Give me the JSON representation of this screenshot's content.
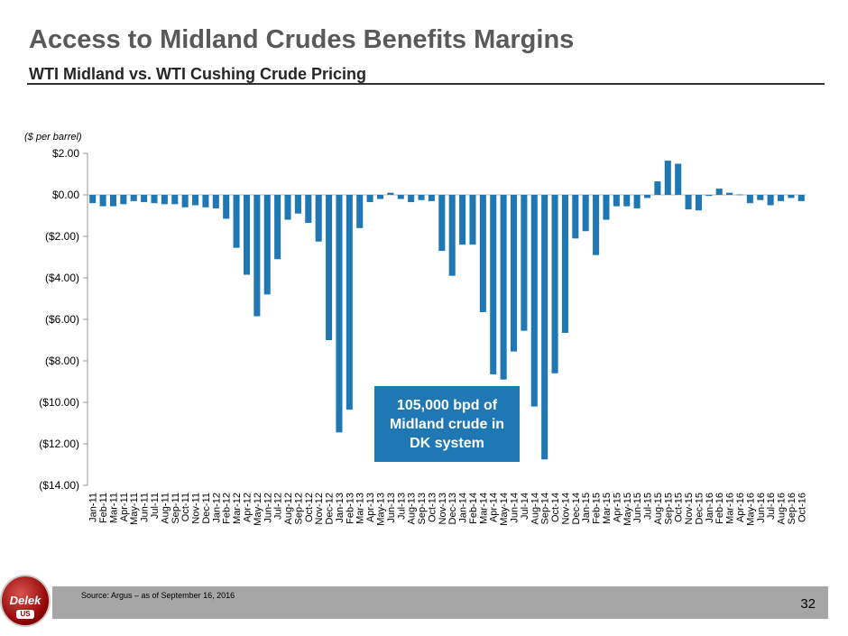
{
  "header": {
    "title": "Access to Midland Crudes Benefits Margins",
    "subtitle": "WTI Midland vs. WTI Cushing Crude Pricing"
  },
  "callout": {
    "line1": "105,000 bpd of",
    "line2": "Midland crude in",
    "line3": "DK system"
  },
  "footer": {
    "source": "Source:  Argus – as of September 16, 2016",
    "page_number": "32"
  },
  "logo": {
    "text": "Delek",
    "sub": "US"
  },
  "colors": {
    "bar": "#1f77b4",
    "callout_bg": "#1f77b4",
    "title": "#595959"
  },
  "chart_data": {
    "type": "bar",
    "title": "WTI Midland vs. WTI Cushing Crude Pricing",
    "ylabel": "($ per barrel)",
    "xlabel": "",
    "ylim": [
      -14,
      2
    ],
    "yticks": [
      2,
      0,
      -2,
      -4,
      -6,
      -8,
      -10,
      -12,
      -14
    ],
    "ytick_labels": [
      "$2.00",
      "$0.00",
      "($2.00)",
      "($4.00)",
      "($6.00)",
      "($8.00)",
      "($10.00)",
      "($12.00)",
      "($14.00)"
    ],
    "categories": [
      "Jan-11",
      "Feb-11",
      "Mar-11",
      "Apr-11",
      "May-11",
      "Jun-11",
      "Jul-11",
      "Aug-11",
      "Sep-11",
      "Oct-11",
      "Nov-11",
      "Dec-11",
      "Jan-12",
      "Feb-12",
      "Mar-12",
      "Apr-12",
      "May-12",
      "Jun-12",
      "Jul-12",
      "Aug-12",
      "Sep-12",
      "Oct-12",
      "Nov-12",
      "Dec-12",
      "Jan-13",
      "Feb-13",
      "Mar-13",
      "Apr-13",
      "May-13",
      "Jun-13",
      "Jul-13",
      "Aug-13",
      "Sep-13",
      "Oct-13",
      "Nov-13",
      "Dec-13",
      "Jan-14",
      "Feb-14",
      "Mar-14",
      "Apr-14",
      "May-14",
      "Jun-14",
      "Jul-14",
      "Aug-14",
      "Sep-14",
      "Oct-14",
      "Nov-14",
      "Dec-14",
      "Jan-15",
      "Feb-15",
      "Mar-15",
      "Apr-15",
      "May-15",
      "Jun-15",
      "Jul-15",
      "Aug-15",
      "Sep-15",
      "Oct-15",
      "Nov-15",
      "Dec-15",
      "Jan-16",
      "Feb-16",
      "Mar-16",
      "Apr-16",
      "May-16",
      "Jun-16",
      "Jul-16",
      "Aug-16",
      "Sep-16",
      "Oct-16"
    ],
    "values": [
      -0.4,
      -0.55,
      -0.55,
      -0.45,
      -0.3,
      -0.35,
      -0.4,
      -0.45,
      -0.45,
      -0.6,
      -0.5,
      -0.6,
      -0.65,
      -1.15,
      -2.55,
      -3.85,
      -5.85,
      -4.8,
      -3.1,
      -1.2,
      -0.9,
      -1.35,
      -2.25,
      -7.0,
      -11.45,
      -10.35,
      -1.6,
      -0.35,
      -0.2,
      0.1,
      -0.2,
      -0.35,
      -0.25,
      -0.3,
      -2.7,
      -3.9,
      -2.4,
      -2.4,
      -5.65,
      -8.65,
      -8.9,
      -7.55,
      -6.55,
      -10.2,
      -12.75,
      -8.6,
      -6.65,
      -2.1,
      -1.75,
      -2.9,
      -1.2,
      -0.55,
      -0.55,
      -0.65,
      -0.15,
      0.65,
      1.65,
      1.5,
      -0.7,
      -0.75,
      -0.05,
      0.3,
      0.1,
      0.02,
      -0.4,
      -0.25,
      -0.5,
      -0.3,
      -0.15,
      -0.3
    ]
  }
}
